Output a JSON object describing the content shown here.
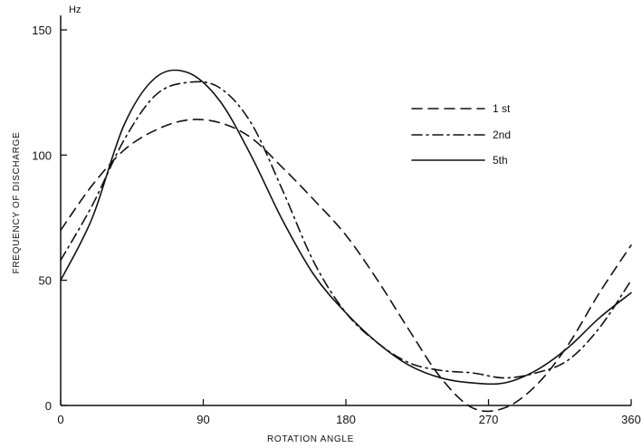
{
  "chart_data": {
    "type": "line",
    "title": "",
    "xlabel": "ROTATION ANGLE",
    "ylabel": "FREQUENCY OF DISCHARGE",
    "y_unit": "Hz",
    "xlim": [
      0,
      360
    ],
    "ylim": [
      0,
      150
    ],
    "x_ticks": [
      0,
      90,
      180,
      270,
      360
    ],
    "x_tick_labels": [
      "0",
      "90",
      "180",
      "270",
      "360"
    ],
    "y_ticks": [
      0,
      50,
      100,
      150
    ],
    "y_tick_labels": [
      "0",
      "50",
      "100",
      "150"
    ],
    "grid": false,
    "legend_position": "top-right",
    "series": [
      {
        "name": "1 st",
        "line_style": "dashed",
        "color": "#111111",
        "x": [
          0,
          20,
          40,
          60,
          80,
          100,
          120,
          140,
          160,
          180,
          200,
          220,
          240,
          260,
          280,
          300,
          320,
          340,
          360
        ],
        "y": [
          70,
          88,
          102,
          110,
          114,
          113,
          107,
          95,
          82,
          68,
          50,
          30,
          11,
          -1,
          -1,
          8,
          24,
          45,
          64
        ]
      },
      {
        "name": "2nd",
        "line_style": "dash-dot",
        "color": "#111111",
        "x": [
          0,
          20,
          40,
          60,
          80,
          100,
          120,
          140,
          160,
          180,
          200,
          220,
          240,
          260,
          280,
          300,
          320,
          340,
          360
        ],
        "y": [
          58,
          80,
          106,
          124,
          129,
          127,
          113,
          86,
          57,
          37,
          25,
          17,
          14,
          13,
          11,
          13,
          18,
          31,
          50
        ]
      },
      {
        "name": "5th",
        "line_style": "solid",
        "color": "#111111",
        "x": [
          0,
          20,
          40,
          60,
          80,
          100,
          120,
          140,
          160,
          180,
          200,
          220,
          240,
          260,
          280,
          300,
          320,
          340,
          360
        ],
        "y": [
          50,
          75,
          112,
          131,
          133,
          122,
          100,
          74,
          52,
          37,
          25,
          16,
          11,
          9,
          9,
          14,
          23,
          35,
          45
        ]
      }
    ]
  }
}
